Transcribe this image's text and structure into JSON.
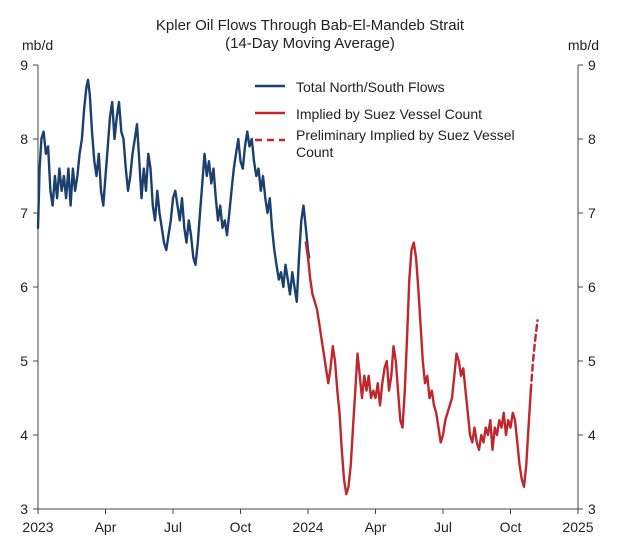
{
  "chart_data": {
    "type": "line",
    "title": "Kpler Oil Flows Through Bab-El-Mandeb Strait",
    "subtitle": "(14-Day Moving Average)",
    "ylabel_left": "mb/d",
    "ylabel_right": "mb/d",
    "ylim": [
      3,
      9
    ],
    "yticks": [
      3,
      4,
      5,
      6,
      7,
      8,
      9
    ],
    "xlim": [
      0,
      24
    ],
    "xticks": [
      {
        "month": 0,
        "label": "2023"
      },
      {
        "month": 3,
        "label": "Apr"
      },
      {
        "month": 6,
        "label": "Jul"
      },
      {
        "month": 9,
        "label": "Oct"
      },
      {
        "month": 12,
        "label": "2024"
      },
      {
        "month": 15,
        "label": "Apr"
      },
      {
        "month": 18,
        "label": "Jul"
      },
      {
        "month": 21,
        "label": "Oct"
      },
      {
        "month": 24,
        "label": "2025"
      }
    ],
    "series": [
      {
        "name": "Total North/South Flows",
        "color": "#1b3f6e",
        "style": "solid",
        "points": [
          [
            0,
            6.8
          ],
          [
            0.07,
            7.6
          ],
          [
            0.15,
            8.0
          ],
          [
            0.25,
            8.1
          ],
          [
            0.35,
            7.8
          ],
          [
            0.45,
            7.9
          ],
          [
            0.55,
            7.3
          ],
          [
            0.65,
            7.1
          ],
          [
            0.75,
            7.5
          ],
          [
            0.85,
            7.2
          ],
          [
            0.95,
            7.6
          ],
          [
            1.05,
            7.3
          ],
          [
            1.15,
            7.5
          ],
          [
            1.25,
            7.2
          ],
          [
            1.35,
            7.6
          ],
          [
            1.45,
            7.1
          ],
          [
            1.55,
            7.6
          ],
          [
            1.65,
            7.3
          ],
          [
            1.75,
            7.5
          ],
          [
            1.85,
            7.8
          ],
          [
            1.95,
            8.0
          ],
          [
            2.05,
            8.4
          ],
          [
            2.15,
            8.7
          ],
          [
            2.22,
            8.8
          ],
          [
            2.3,
            8.6
          ],
          [
            2.4,
            8.1
          ],
          [
            2.5,
            7.7
          ],
          [
            2.6,
            7.5
          ],
          [
            2.7,
            7.8
          ],
          [
            2.8,
            7.3
          ],
          [
            2.9,
            7.1
          ],
          [
            3.0,
            7.5
          ],
          [
            3.1,
            7.9
          ],
          [
            3.2,
            8.3
          ],
          [
            3.3,
            8.5
          ],
          [
            3.4,
            8.0
          ],
          [
            3.5,
            8.3
          ],
          [
            3.6,
            8.5
          ],
          [
            3.7,
            8.1
          ],
          [
            3.8,
            8.0
          ],
          [
            3.9,
            7.6
          ],
          [
            4.0,
            7.3
          ],
          [
            4.1,
            7.5
          ],
          [
            4.2,
            7.8
          ],
          [
            4.3,
            8.0
          ],
          [
            4.4,
            8.2
          ],
          [
            4.5,
            7.7
          ],
          [
            4.6,
            7.2
          ],
          [
            4.7,
            7.6
          ],
          [
            4.8,
            7.3
          ],
          [
            4.9,
            7.8
          ],
          [
            5.0,
            7.6
          ],
          [
            5.1,
            7.1
          ],
          [
            5.2,
            6.9
          ],
          [
            5.3,
            7.3
          ],
          [
            5.4,
            7.0
          ],
          [
            5.5,
            6.8
          ],
          [
            5.6,
            6.6
          ],
          [
            5.7,
            6.5
          ],
          [
            5.8,
            6.7
          ],
          [
            5.9,
            6.9
          ],
          [
            6.0,
            7.2
          ],
          [
            6.1,
            7.3
          ],
          [
            6.2,
            7.1
          ],
          [
            6.3,
            6.9
          ],
          [
            6.4,
            7.2
          ],
          [
            6.5,
            6.8
          ],
          [
            6.6,
            6.6
          ],
          [
            6.7,
            6.9
          ],
          [
            6.8,
            6.7
          ],
          [
            6.9,
            6.4
          ],
          [
            7.0,
            6.3
          ],
          [
            7.1,
            6.6
          ],
          [
            7.2,
            7.0
          ],
          [
            7.3,
            7.4
          ],
          [
            7.4,
            7.8
          ],
          [
            7.5,
            7.5
          ],
          [
            7.6,
            7.7
          ],
          [
            7.7,
            7.4
          ],
          [
            7.8,
            7.6
          ],
          [
            7.9,
            7.2
          ],
          [
            8.0,
            6.9
          ],
          [
            8.1,
            7.1
          ],
          [
            8.2,
            6.8
          ],
          [
            8.3,
            6.9
          ],
          [
            8.4,
            6.7
          ],
          [
            8.5,
            7.0
          ],
          [
            8.6,
            7.3
          ],
          [
            8.7,
            7.6
          ],
          [
            8.8,
            7.8
          ],
          [
            8.9,
            8.0
          ],
          [
            9.0,
            7.7
          ],
          [
            9.1,
            7.6
          ],
          [
            9.2,
            7.9
          ],
          [
            9.3,
            8.1
          ],
          [
            9.4,
            7.9
          ],
          [
            9.5,
            8.0
          ],
          [
            9.6,
            7.7
          ],
          [
            9.7,
            7.5
          ],
          [
            9.8,
            7.6
          ],
          [
            9.9,
            7.3
          ],
          [
            10.0,
            7.5
          ],
          [
            10.1,
            7.2
          ],
          [
            10.2,
            7.0
          ],
          [
            10.3,
            7.2
          ],
          [
            10.4,
            6.8
          ],
          [
            10.5,
            6.5
          ],
          [
            10.6,
            6.3
          ],
          [
            10.7,
            6.1
          ],
          [
            10.8,
            6.2
          ],
          [
            10.9,
            6.0
          ],
          [
            11.0,
            6.3
          ],
          [
            11.1,
            6.1
          ],
          [
            11.2,
            5.9
          ],
          [
            11.3,
            6.2
          ],
          [
            11.4,
            6.0
          ],
          [
            11.5,
            5.8
          ],
          [
            11.6,
            6.4
          ],
          [
            11.7,
            6.9
          ],
          [
            11.8,
            7.1
          ],
          [
            11.9,
            6.8
          ],
          [
            12.0,
            6.5
          ],
          [
            12.05,
            6.4
          ]
        ]
      },
      {
        "name": "Implied by Suez Vessel Count",
        "color": "#c0272d",
        "style": "solid",
        "points": [
          [
            11.9,
            6.6
          ],
          [
            12.0,
            6.4
          ],
          [
            12.1,
            6.1
          ],
          [
            12.2,
            5.9
          ],
          [
            12.3,
            5.8
          ],
          [
            12.4,
            5.7
          ],
          [
            12.5,
            5.5
          ],
          [
            12.6,
            5.3
          ],
          [
            12.7,
            5.1
          ],
          [
            12.8,
            4.9
          ],
          [
            12.9,
            4.7
          ],
          [
            13.0,
            4.9
          ],
          [
            13.1,
            5.2
          ],
          [
            13.2,
            5.0
          ],
          [
            13.3,
            4.6
          ],
          [
            13.4,
            4.3
          ],
          [
            13.5,
            3.8
          ],
          [
            13.6,
            3.4
          ],
          [
            13.7,
            3.2
          ],
          [
            13.8,
            3.3
          ],
          [
            13.9,
            3.6
          ],
          [
            14.0,
            4.1
          ],
          [
            14.1,
            4.6
          ],
          [
            14.2,
            5.1
          ],
          [
            14.3,
            4.8
          ],
          [
            14.4,
            4.5
          ],
          [
            14.5,
            4.8
          ],
          [
            14.6,
            4.6
          ],
          [
            14.7,
            4.8
          ],
          [
            14.8,
            4.5
          ],
          [
            14.9,
            4.6
          ],
          [
            15.0,
            4.5
          ],
          [
            15.1,
            4.7
          ],
          [
            15.2,
            4.4
          ],
          [
            15.3,
            4.7
          ],
          [
            15.4,
            4.9
          ],
          [
            15.5,
            5.0
          ],
          [
            15.6,
            4.6
          ],
          [
            15.7,
            4.8
          ],
          [
            15.8,
            5.2
          ],
          [
            15.9,
            5.0
          ],
          [
            16.0,
            4.6
          ],
          [
            16.1,
            4.2
          ],
          [
            16.2,
            4.1
          ],
          [
            16.3,
            4.6
          ],
          [
            16.4,
            5.3
          ],
          [
            16.5,
            6.1
          ],
          [
            16.6,
            6.5
          ],
          [
            16.7,
            6.6
          ],
          [
            16.8,
            6.4
          ],
          [
            16.9,
            6.0
          ],
          [
            17.0,
            5.5
          ],
          [
            17.1,
            5.0
          ],
          [
            17.2,
            4.7
          ],
          [
            17.3,
            4.8
          ],
          [
            17.4,
            4.5
          ],
          [
            17.5,
            4.6
          ],
          [
            17.6,
            4.4
          ],
          [
            17.7,
            4.3
          ],
          [
            17.8,
            4.1
          ],
          [
            17.9,
            3.9
          ],
          [
            18.0,
            4.0
          ],
          [
            18.1,
            4.2
          ],
          [
            18.2,
            4.3
          ],
          [
            18.3,
            4.4
          ],
          [
            18.4,
            4.5
          ],
          [
            18.5,
            4.8
          ],
          [
            18.6,
            5.1
          ],
          [
            18.7,
            5.0
          ],
          [
            18.8,
            4.8
          ],
          [
            18.9,
            4.9
          ],
          [
            19.0,
            4.6
          ],
          [
            19.1,
            4.3
          ],
          [
            19.2,
            4.0
          ],
          [
            19.3,
            3.9
          ],
          [
            19.4,
            4.1
          ],
          [
            19.5,
            3.9
          ],
          [
            19.6,
            3.8
          ],
          [
            19.7,
            4.0
          ],
          [
            19.8,
            3.9
          ],
          [
            19.9,
            4.1
          ],
          [
            20.0,
            4.0
          ],
          [
            20.1,
            4.2
          ],
          [
            20.2,
            3.8
          ],
          [
            20.3,
            4.1
          ],
          [
            20.4,
            4.0
          ],
          [
            20.5,
            4.2
          ],
          [
            20.6,
            4.1
          ],
          [
            20.7,
            4.3
          ],
          [
            20.8,
            4.0
          ],
          [
            20.9,
            4.2
          ],
          [
            21.0,
            4.1
          ],
          [
            21.1,
            4.3
          ],
          [
            21.2,
            4.2
          ],
          [
            21.3,
            3.9
          ],
          [
            21.4,
            3.6
          ],
          [
            21.5,
            3.4
          ],
          [
            21.6,
            3.3
          ],
          [
            21.7,
            3.6
          ],
          [
            21.8,
            4.1
          ],
          [
            21.9,
            4.6
          ]
        ]
      },
      {
        "name": "Preliminary Implied by Suez Vessel Count",
        "color": "#c0272d",
        "style": "dashed",
        "points": [
          [
            21.9,
            4.6
          ],
          [
            22.0,
            5.0
          ],
          [
            22.1,
            5.3
          ],
          [
            22.2,
            5.55
          ]
        ]
      }
    ],
    "legend": [
      "Total North/South Flows",
      "Implied by Suez Vessel Count",
      "Preliminary Implied by Suez Vessel Count"
    ],
    "legend_position": "top-right",
    "grid": false
  }
}
